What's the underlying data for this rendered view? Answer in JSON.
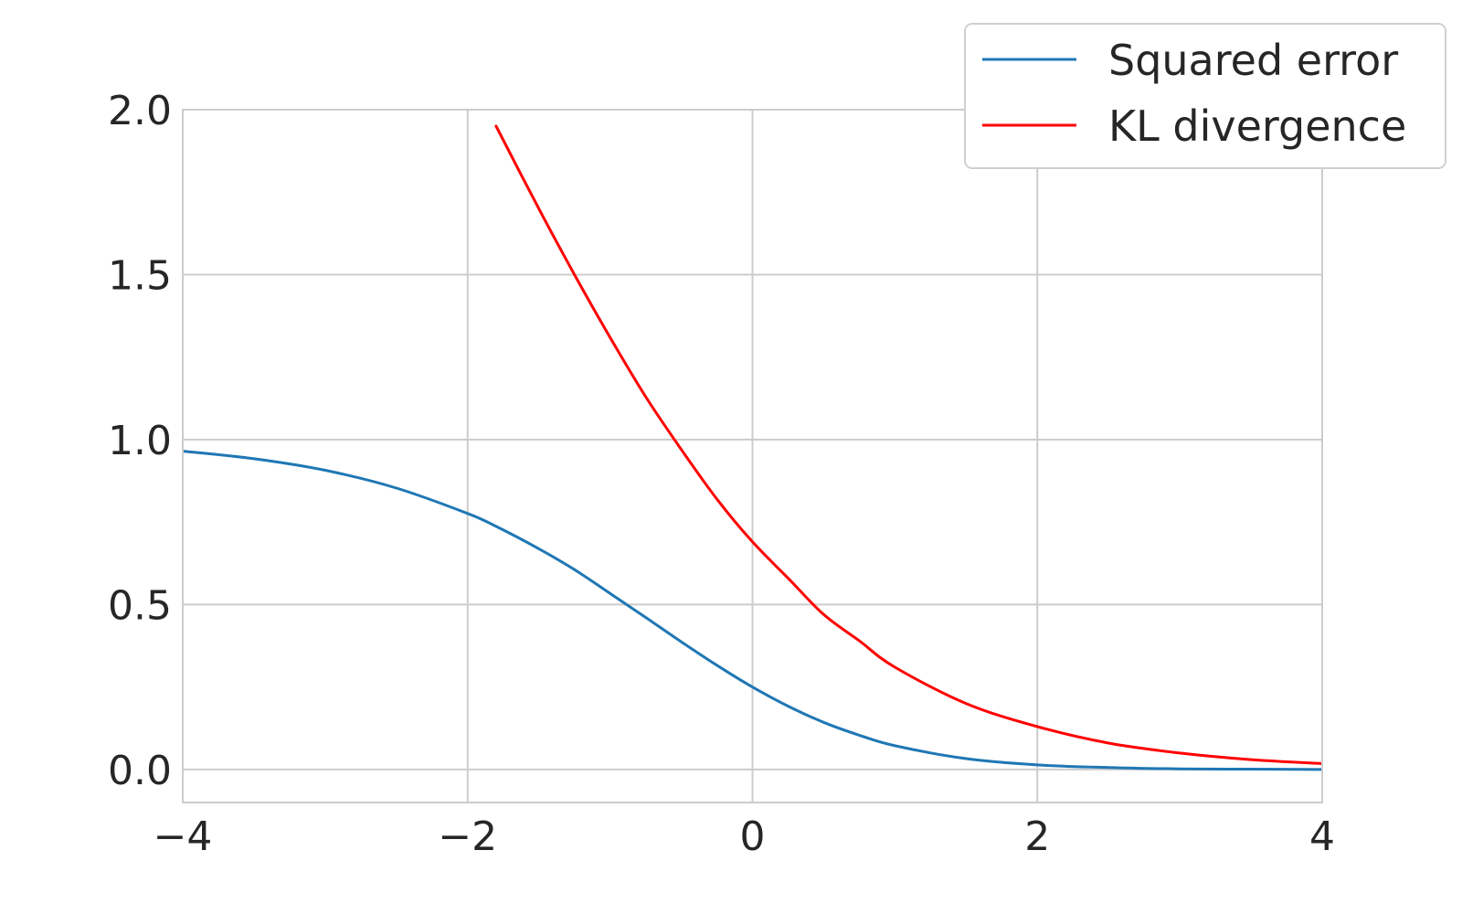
{
  "chart_data": {
    "type": "line",
    "title": "",
    "xlabel": "",
    "ylabel": "",
    "xlim": [
      -4,
      4
    ],
    "ylim": [
      -0.1,
      2.0
    ],
    "x_ticks": [
      -4,
      -2,
      0,
      2,
      4
    ],
    "x_tick_labels": [
      "−4",
      "−2",
      "0",
      "2",
      "4"
    ],
    "y_ticks": [
      0.0,
      0.5,
      1.0,
      1.5,
      2.0
    ],
    "y_tick_labels": [
      "0.0",
      "0.5",
      "1.0",
      "1.5",
      "2.0"
    ],
    "grid": true,
    "legend_position": "top-right",
    "x": [
      -4,
      -3.5,
      -3,
      -2.5,
      -2,
      -1.8,
      -1.5,
      -1.25,
      -1,
      -0.75,
      -0.5,
      -0.25,
      0,
      0.25,
      0.5,
      0.75,
      1,
      1.5,
      2,
      2.5,
      3,
      3.5,
      4
    ],
    "series": [
      {
        "name": "Squared error",
        "color": "#1f77b4",
        "values": [
          0.965,
          0.942,
          0.907,
          0.853,
          0.776,
          0.737,
          0.669,
          0.606,
          0.534,
          0.461,
          0.387,
          0.316,
          0.25,
          0.192,
          0.143,
          0.104,
          0.072,
          0.033,
          0.014,
          0.006,
          0.002,
          0.001,
          0.0
        ]
      },
      {
        "name": "KL divergence",
        "color": "#ff0000",
        "values": [
          null,
          null,
          null,
          null,
          null,
          1.95,
          1.7,
          1.5,
          1.31,
          1.13,
          0.97,
          0.82,
          0.69,
          0.58,
          0.47,
          0.39,
          0.31,
          0.2,
          0.13,
          0.08,
          0.05,
          0.03,
          0.018
        ]
      }
    ]
  }
}
